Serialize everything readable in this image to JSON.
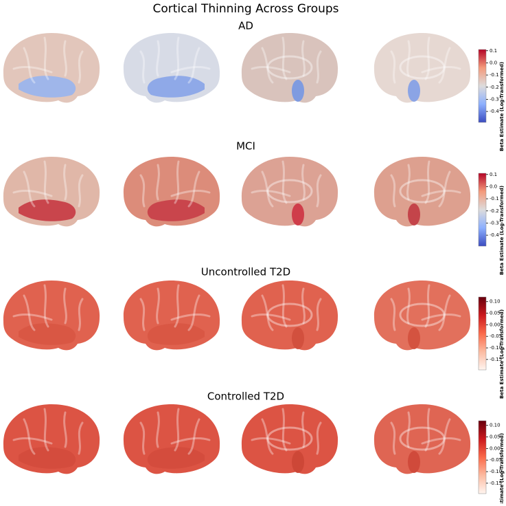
{
  "title": "Cortical Thinning Across Groups",
  "chart_data": [
    {
      "type": "colorbar",
      "title": "AD",
      "label": "Beta Estimate (Log-Transformed)",
      "ylim": [
        -0.49,
        0.11
      ],
      "yticks": [
        0.1,
        {
          "value": 0,
          "label": "0.0"
        },
        -0.1,
        -0.2,
        -0.3,
        -0.4
      ],
      "colors": [
        "#3b4cc0",
        "#8db0fe",
        "#dddcdc",
        "#f49a7b",
        "#b40426"
      ]
    },
    {
      "type": "colorbar",
      "title": "MCI",
      "label": "Beta Estimate (Log-Transformed)",
      "ylim": [
        -0.49,
        0.11
      ],
      "yticks": [
        0.1,
        {
          "value": 0,
          "label": "0.0"
        },
        -0.1,
        -0.2,
        -0.3,
        -0.4
      ],
      "colors": [
        "#3b4cc0",
        "#8db0fe",
        "#dddcdc",
        "#f49a7b",
        "#b40426"
      ]
    },
    {
      "type": "colorbar",
      "title": "Uncontrolled T2D",
      "label": "Beta Estimate (Log-Transformed)",
      "ylim": [
        -0.195,
        0.12
      ],
      "yticks": [
        {
          "value": 0.1,
          "label": "0.10"
        },
        0.05,
        {
          "value": 0,
          "label": "0.00"
        },
        -0.05,
        {
          "value": -0.1,
          "label": "-0.10"
        },
        -0.15
      ],
      "colors": [
        "#fff5f0",
        "#fcbba1",
        "#fb6a4a",
        "#cb181d",
        "#67000d"
      ]
    },
    {
      "type": "colorbar",
      "title": "Controlled T2D",
      "label": "Beta Estimate (Log-Transformed)",
      "ylim": [
        -0.195,
        0.12
      ],
      "yticks": [
        {
          "value": 0.1,
          "label": "0.10"
        },
        0.05,
        {
          "value": 0,
          "label": "0.00"
        },
        -0.05,
        {
          "value": -0.1,
          "label": "-0.10"
        },
        -0.15
      ],
      "colors": [
        "#fff5f0",
        "#fcbba1",
        "#fb6a4a",
        "#cb181d",
        "#67000d"
      ]
    }
  ]
}
